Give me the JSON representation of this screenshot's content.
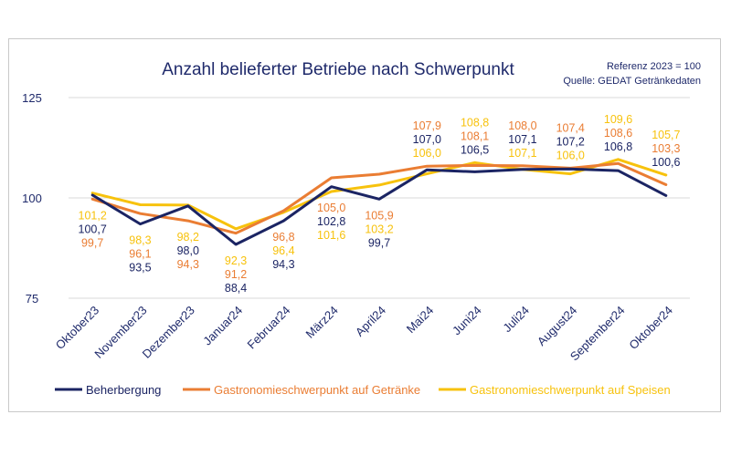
{
  "chart_data": {
    "type": "line",
    "title": "Anzahl belieferter Betriebe nach Schwerpunkt",
    "notes": [
      "Referenz 2023 = 100",
      "Quelle: GEDAT Getränkedaten"
    ],
    "categories": [
      "Oktober23",
      "November23",
      "Dezember23",
      "Januar24",
      "Februar24",
      "März24",
      "April24",
      "Mai24",
      "Juni24",
      "Juli24",
      "August24",
      "September24",
      "Oktober24"
    ],
    "ylim": [
      75,
      125
    ],
    "yticks": [
      "75",
      "100",
      "125"
    ],
    "grid": true,
    "legend_position": "bottom",
    "series": [
      {
        "name": "Beherbergung",
        "color": "#1b2463",
        "values": [
          100.7,
          93.5,
          98.0,
          88.4,
          94.3,
          102.8,
          99.7,
          107.0,
          106.5,
          107.1,
          107.2,
          106.8,
          100.6
        ],
        "labels": [
          "100,7",
          "93,5",
          "98,0",
          "88,4",
          "94,3",
          "102,8",
          "99,7",
          "107,0",
          "106,5",
          "107,1",
          "107,2",
          "106,8",
          "100,6"
        ]
      },
      {
        "name": "Gastronomieschwerpunkt auf Getränke",
        "color": "#ea7d33",
        "values": [
          99.7,
          96.1,
          94.3,
          91.2,
          96.8,
          105.0,
          105.9,
          107.9,
          108.1,
          108.0,
          107.4,
          108.6,
          103.3
        ],
        "labels": [
          "99,7",
          "96,1",
          "94,3",
          "91,2",
          "96,8",
          "105,0",
          "105,9",
          "107,9",
          "108,1",
          "108,0",
          "107,4",
          "108,6",
          "103,3"
        ]
      },
      {
        "name": "Gastronomieschwerpunkt auf Speisen",
        "color": "#f7c20d",
        "values": [
          101.2,
          98.3,
          98.2,
          92.3,
          96.4,
          101.6,
          103.2,
          106.0,
          108.8,
          107.1,
          106.0,
          109.6,
          105.7
        ],
        "labels": [
          "101,2",
          "98,3",
          "98,2",
          "92,3",
          "96,4",
          "101,6",
          "103,2",
          "106,0",
          "108,8",
          "107,1",
          "106,0",
          "109,6",
          "105,7"
        ]
      }
    ]
  }
}
